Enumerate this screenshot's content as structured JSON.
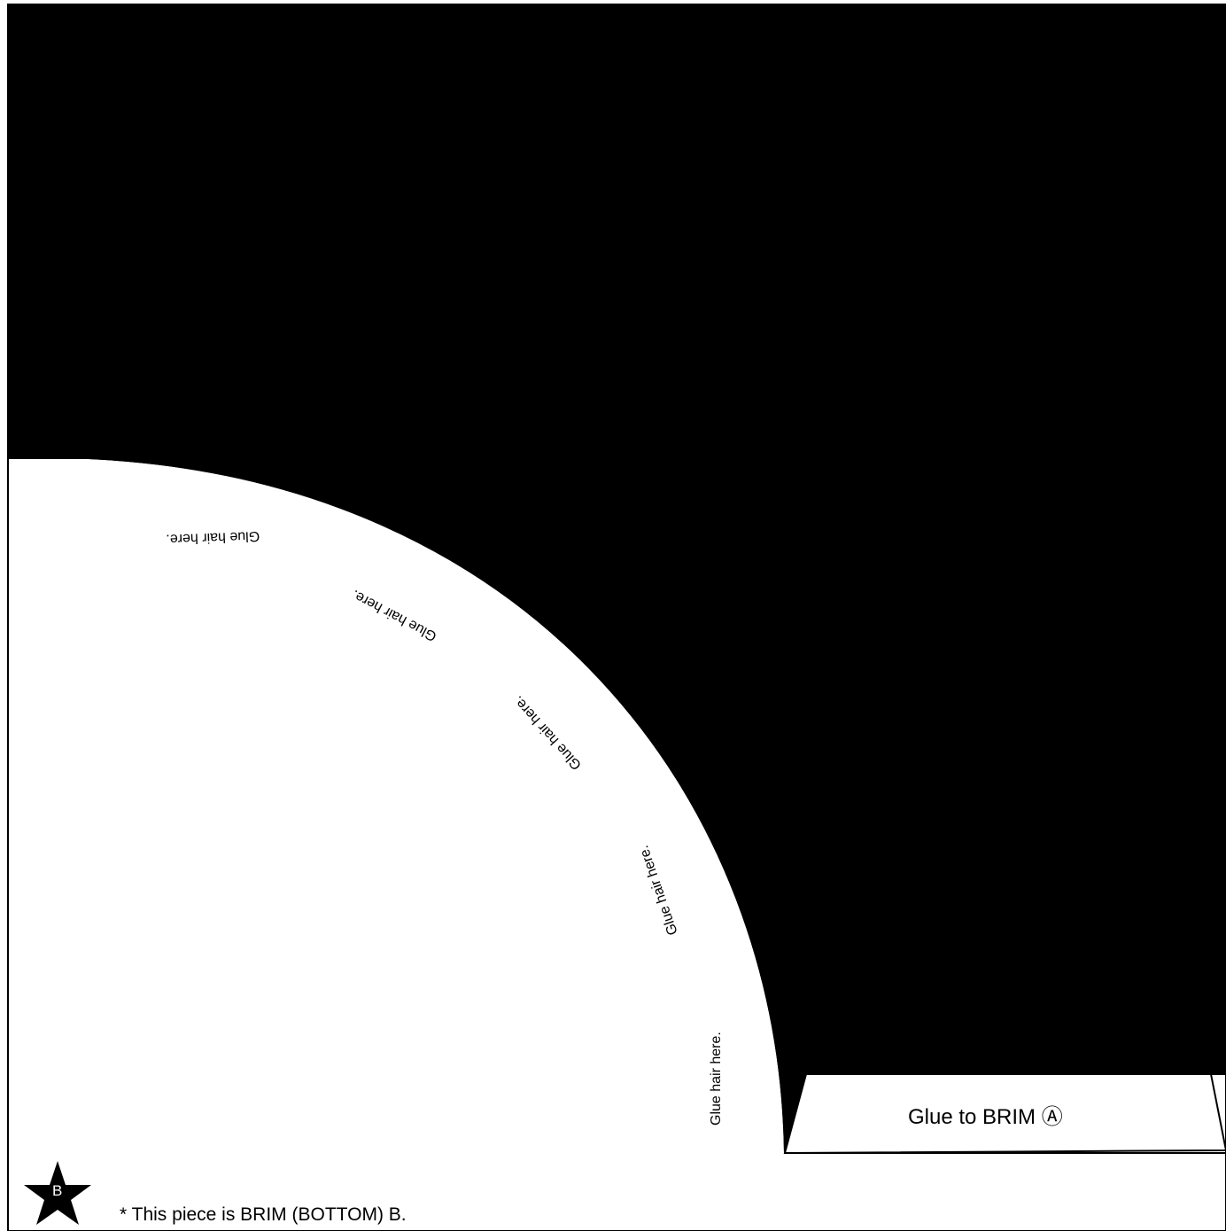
{
  "template": {
    "piece_name": "BRIM (BOTTOM) B",
    "fill_color": "#000000",
    "paper_color": "#ffffff",
    "glue_hair_labels": [
      "Glue hair here.",
      "Glue hair here.",
      "Glue hair here.",
      "Glue hair here.",
      "Glue hair here."
    ],
    "tab_label": "Glue to BRIM Ⓐ",
    "badge_letter": "B",
    "badge_icon": "star-icon",
    "footnote": "* This piece is BRIM (BOTTOM) B."
  }
}
